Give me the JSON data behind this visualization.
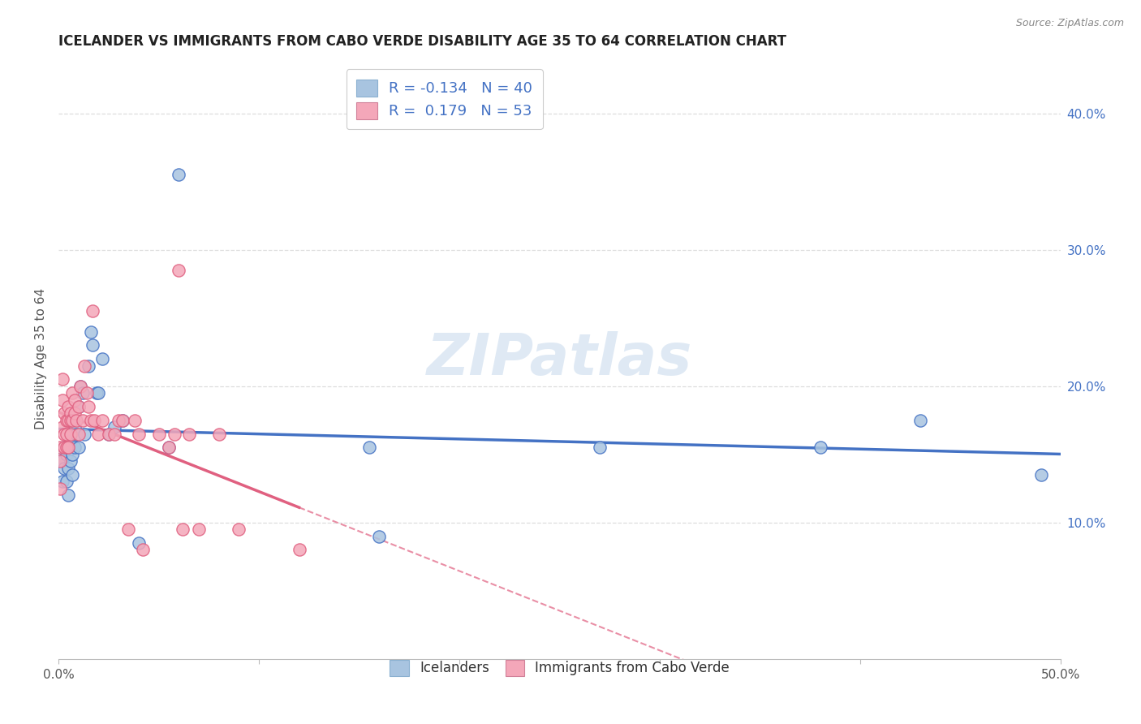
{
  "title": "ICELANDER VS IMMIGRANTS FROM CABO VERDE DISABILITY AGE 35 TO 64 CORRELATION CHART",
  "source": "Source: ZipAtlas.com",
  "ylabel": "Disability Age 35 to 64",
  "right_yticks": [
    "10.0%",
    "20.0%",
    "30.0%",
    "40.0%"
  ],
  "right_ytick_vals": [
    0.1,
    0.2,
    0.3,
    0.4
  ],
  "xlim": [
    0.0,
    0.5
  ],
  "ylim": [
    0.0,
    0.44
  ],
  "color_icelander": "#a8c4e0",
  "color_cabo": "#f4a7b9",
  "line_color_icelander": "#4472c4",
  "line_color_cabo": "#e06080",
  "watermark": "ZIPatlas",
  "icelander_x": [
    0.001,
    0.002,
    0.002,
    0.003,
    0.003,
    0.004,
    0.004,
    0.005,
    0.005,
    0.005,
    0.006,
    0.006,
    0.007,
    0.007,
    0.008,
    0.008,
    0.009,
    0.01,
    0.01,
    0.011,
    0.012,
    0.013,
    0.015,
    0.016,
    0.017,
    0.019,
    0.02,
    0.022,
    0.025,
    0.028,
    0.032,
    0.04,
    0.055,
    0.06,
    0.155,
    0.16,
    0.27,
    0.38,
    0.43,
    0.49
  ],
  "icelander_y": [
    0.148,
    0.145,
    0.13,
    0.155,
    0.14,
    0.15,
    0.13,
    0.155,
    0.14,
    0.12,
    0.16,
    0.145,
    0.135,
    0.15,
    0.155,
    0.17,
    0.165,
    0.155,
    0.185,
    0.2,
    0.195,
    0.165,
    0.215,
    0.24,
    0.23,
    0.195,
    0.195,
    0.22,
    0.165,
    0.17,
    0.175,
    0.085,
    0.155,
    0.355,
    0.155,
    0.09,
    0.155,
    0.155,
    0.175,
    0.135
  ],
  "cabo_x": [
    0.001,
    0.001,
    0.001,
    0.002,
    0.002,
    0.002,
    0.003,
    0.003,
    0.003,
    0.004,
    0.004,
    0.004,
    0.005,
    0.005,
    0.005,
    0.006,
    0.006,
    0.006,
    0.007,
    0.007,
    0.008,
    0.008,
    0.009,
    0.01,
    0.01,
    0.011,
    0.012,
    0.013,
    0.014,
    0.015,
    0.016,
    0.017,
    0.018,
    0.02,
    0.022,
    0.025,
    0.028,
    0.03,
    0.032,
    0.035,
    0.038,
    0.04,
    0.042,
    0.05,
    0.055,
    0.058,
    0.06,
    0.062,
    0.065,
    0.07,
    0.08,
    0.09,
    0.12
  ],
  "cabo_y": [
    0.155,
    0.145,
    0.125,
    0.205,
    0.19,
    0.17,
    0.18,
    0.165,
    0.155,
    0.175,
    0.165,
    0.155,
    0.175,
    0.185,
    0.155,
    0.18,
    0.175,
    0.165,
    0.195,
    0.175,
    0.18,
    0.19,
    0.175,
    0.165,
    0.185,
    0.2,
    0.175,
    0.215,
    0.195,
    0.185,
    0.175,
    0.255,
    0.175,
    0.165,
    0.175,
    0.165,
    0.165,
    0.175,
    0.175,
    0.095,
    0.175,
    0.165,
    0.08,
    0.165,
    0.155,
    0.165,
    0.285,
    0.095,
    0.165,
    0.095,
    0.165,
    0.095,
    0.08
  ]
}
